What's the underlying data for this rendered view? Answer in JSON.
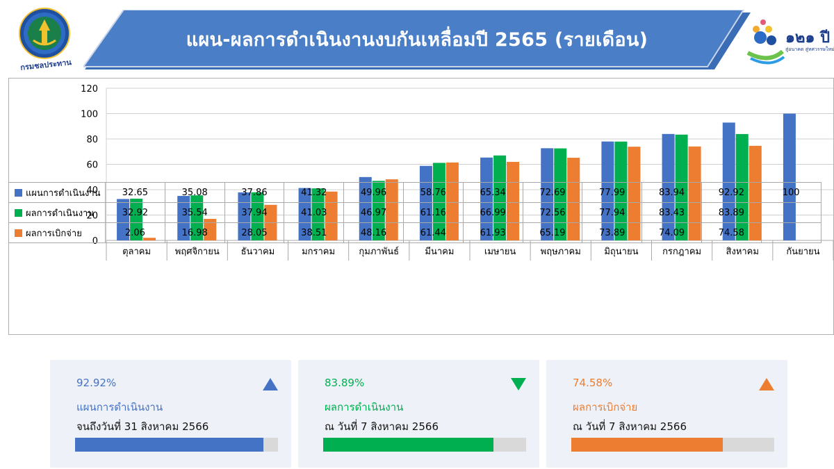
{
  "header": {
    "title": "แผน-ผลการดำเนินงานงบกันเหลื่อมปี 2565 (รายเดือน)",
    "logo_left_text": "กรมชลประทาน",
    "logo_right_text": "๑๒๑ ปี",
    "logo_right_subtext": "สู่อนาคต สู่ทศวรรษใหม่"
  },
  "colors": {
    "plan": "#4472C4",
    "result": "#00B050",
    "disbursement": "#ED7D31",
    "banner": "#4A7EC6"
  },
  "chart_data": {
    "type": "bar",
    "categories": [
      "ตุลาคม",
      "พฤศจิกายน",
      "ธันวาคม",
      "มกราคม",
      "กุมภาพันธ์",
      "มีนาคม",
      "เมษายน",
      "พฤษภาคม",
      "มิถุนายน",
      "กรกฎาคม",
      "สิงหาคม",
      "กันยายน"
    ],
    "series": [
      {
        "name": "แผนการดำเนินงาน",
        "values": [
          32.65,
          35.08,
          37.86,
          41.32,
          49.96,
          58.76,
          65.34,
          72.69,
          77.99,
          83.94,
          92.92,
          100
        ]
      },
      {
        "name": "ผลการดำเนินงาน",
        "values": [
          32.92,
          35.54,
          37.94,
          41.03,
          46.97,
          61.16,
          66.99,
          72.56,
          77.94,
          83.43,
          83.89,
          null
        ]
      },
      {
        "name": "ผลการเบิกจ่าย",
        "values": [
          2.06,
          16.98,
          28.05,
          38.51,
          48.16,
          61.44,
          61.93,
          65.19,
          73.89,
          74.09,
          74.58,
          null
        ]
      }
    ],
    "ylim": [
      0,
      120
    ],
    "yticks": [
      "0",
      "20",
      "40",
      "60",
      "80",
      "100",
      "120"
    ],
    "grid": true,
    "legend": "data-table"
  },
  "table": {
    "rows": [
      {
        "label": "แผนการดำเนินงาน",
        "cells": [
          "32.65",
          "35.08",
          "37.86",
          "41.32",
          "49.96",
          "58.76",
          "65.34",
          "72.69",
          "77.99",
          "83.94",
          "92.92",
          "100"
        ]
      },
      {
        "label": "ผลการดำเนินงาน",
        "cells": [
          "32.92",
          "35.54",
          "37.94",
          "41.03",
          "46.97",
          "61.16",
          "66.99",
          "72.56",
          "77.94",
          "83.43",
          "83.89",
          ""
        ]
      },
      {
        "label": "ผลการเบิกจ่าย",
        "cells": [
          "2.06",
          "16.98",
          "28.05",
          "38.51",
          "48.16",
          "61.44",
          "61.93",
          "65.19",
          "73.89",
          "74.09",
          "74.58",
          ""
        ]
      }
    ]
  },
  "cards": [
    {
      "value": "92.92%",
      "label": "แผนการดำเนินงาน",
      "date": "จนถึงวันที่ 31 สิงหาคม 2566",
      "percent": 92.92,
      "arrow": "up",
      "color": "#4472C4"
    },
    {
      "value": "83.89%",
      "label": "ผลการดำเนินงาน",
      "date": "ณ วันที่ 7 สิงหาคม 2566",
      "percent": 83.89,
      "arrow": "down",
      "color": "#00B050"
    },
    {
      "value": "74.58%",
      "label": "ผลการเบิกจ่าย",
      "date": "ณ วันที่ 7 สิงหาคม 2566",
      "percent": 74.58,
      "arrow": "up",
      "color": "#ED7D31"
    }
  ]
}
